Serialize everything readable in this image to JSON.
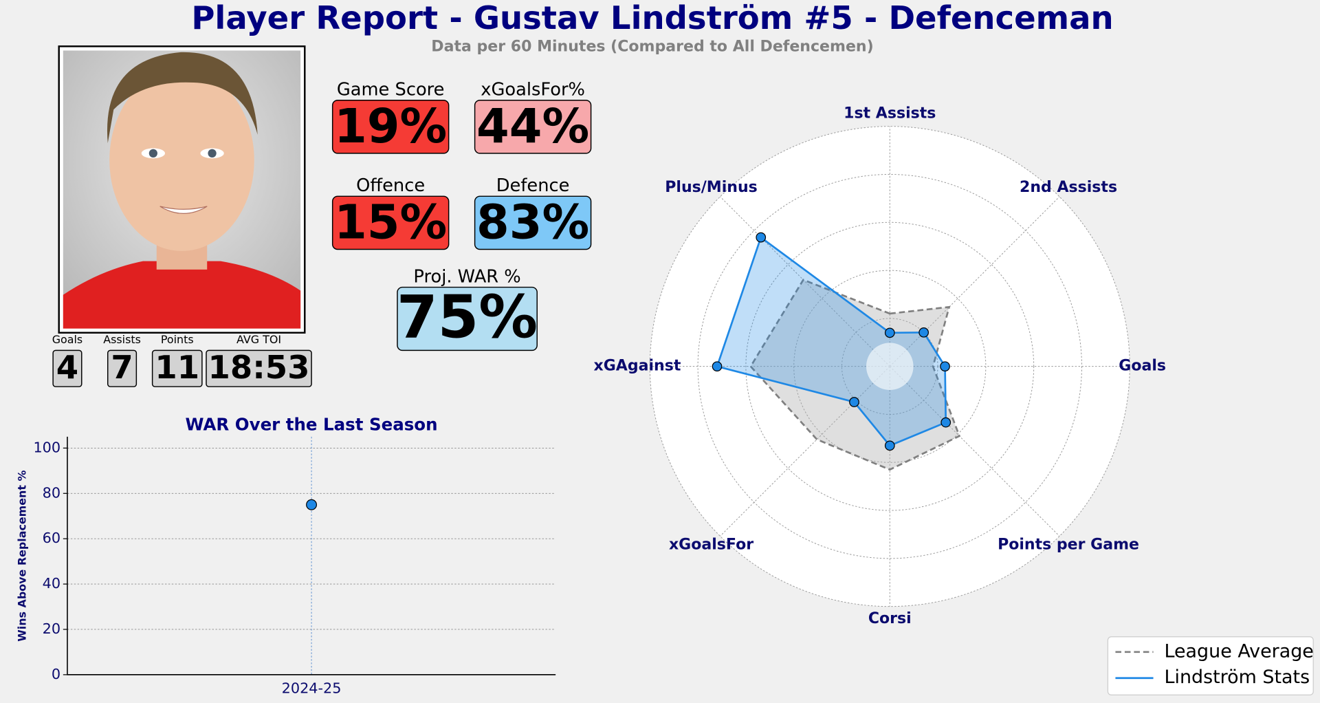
{
  "header": {
    "title": "Player Report - Gustav Lindström #5 - Defenceman",
    "subtitle": "Data per 60 Minutes (Compared to All Defencemen)"
  },
  "stats": [
    {
      "label": "Goals",
      "value": 4
    },
    {
      "label": "Assists",
      "value": 7
    },
    {
      "label": "Points",
      "value": 11
    },
    {
      "label": "AVG TOI",
      "value": "18:53"
    }
  ],
  "metrics": [
    {
      "label": "Game Score",
      "value": "19%",
      "color": "#f53b35"
    },
    {
      "label": "xGoalsFor%",
      "value": "44%",
      "color": "#f7a8ab"
    },
    {
      "label": "Offence",
      "value": "15%",
      "color": "#f53b35"
    },
    {
      "label": "Defence",
      "value": "83%",
      "color": "#7ec8f7"
    },
    {
      "label": "Proj. WAR %",
      "value": "75%",
      "color": "#b3def2"
    }
  ],
  "chart_data": [
    {
      "type": "line",
      "title": "WAR Over the Last Season",
      "ylabel": "Wins Above Replacement %",
      "categories": [
        "2024-25"
      ],
      "values": [
        75
      ],
      "color": "#1e88e5",
      "ylim": [
        0,
        105
      ],
      "yticks": [
        0,
        20,
        40,
        60,
        80,
        100
      ],
      "grid": true
    },
    {
      "type": "radar",
      "categories": [
        "1st Assists",
        "2nd Assists",
        "Goals",
        "Points per Game",
        "Corsi",
        "xGoalsFor",
        "xGAgainst",
        "Plus/Minus"
      ],
      "series": [
        {
          "name": "League Average",
          "color": "#808080",
          "values": [
            22,
            35,
            18,
            41,
            43,
            43,
            58,
            51
          ]
        },
        {
          "name": "Lindström Stats",
          "color": "#1e88e5",
          "values": [
            14,
            20,
            23,
            33,
            33,
            21,
            72,
            76
          ]
        }
      ],
      "rlim": [
        0,
        100
      ],
      "rticks": [
        20,
        40,
        60,
        80,
        100
      ],
      "grid": true,
      "legend": "lower right"
    }
  ]
}
